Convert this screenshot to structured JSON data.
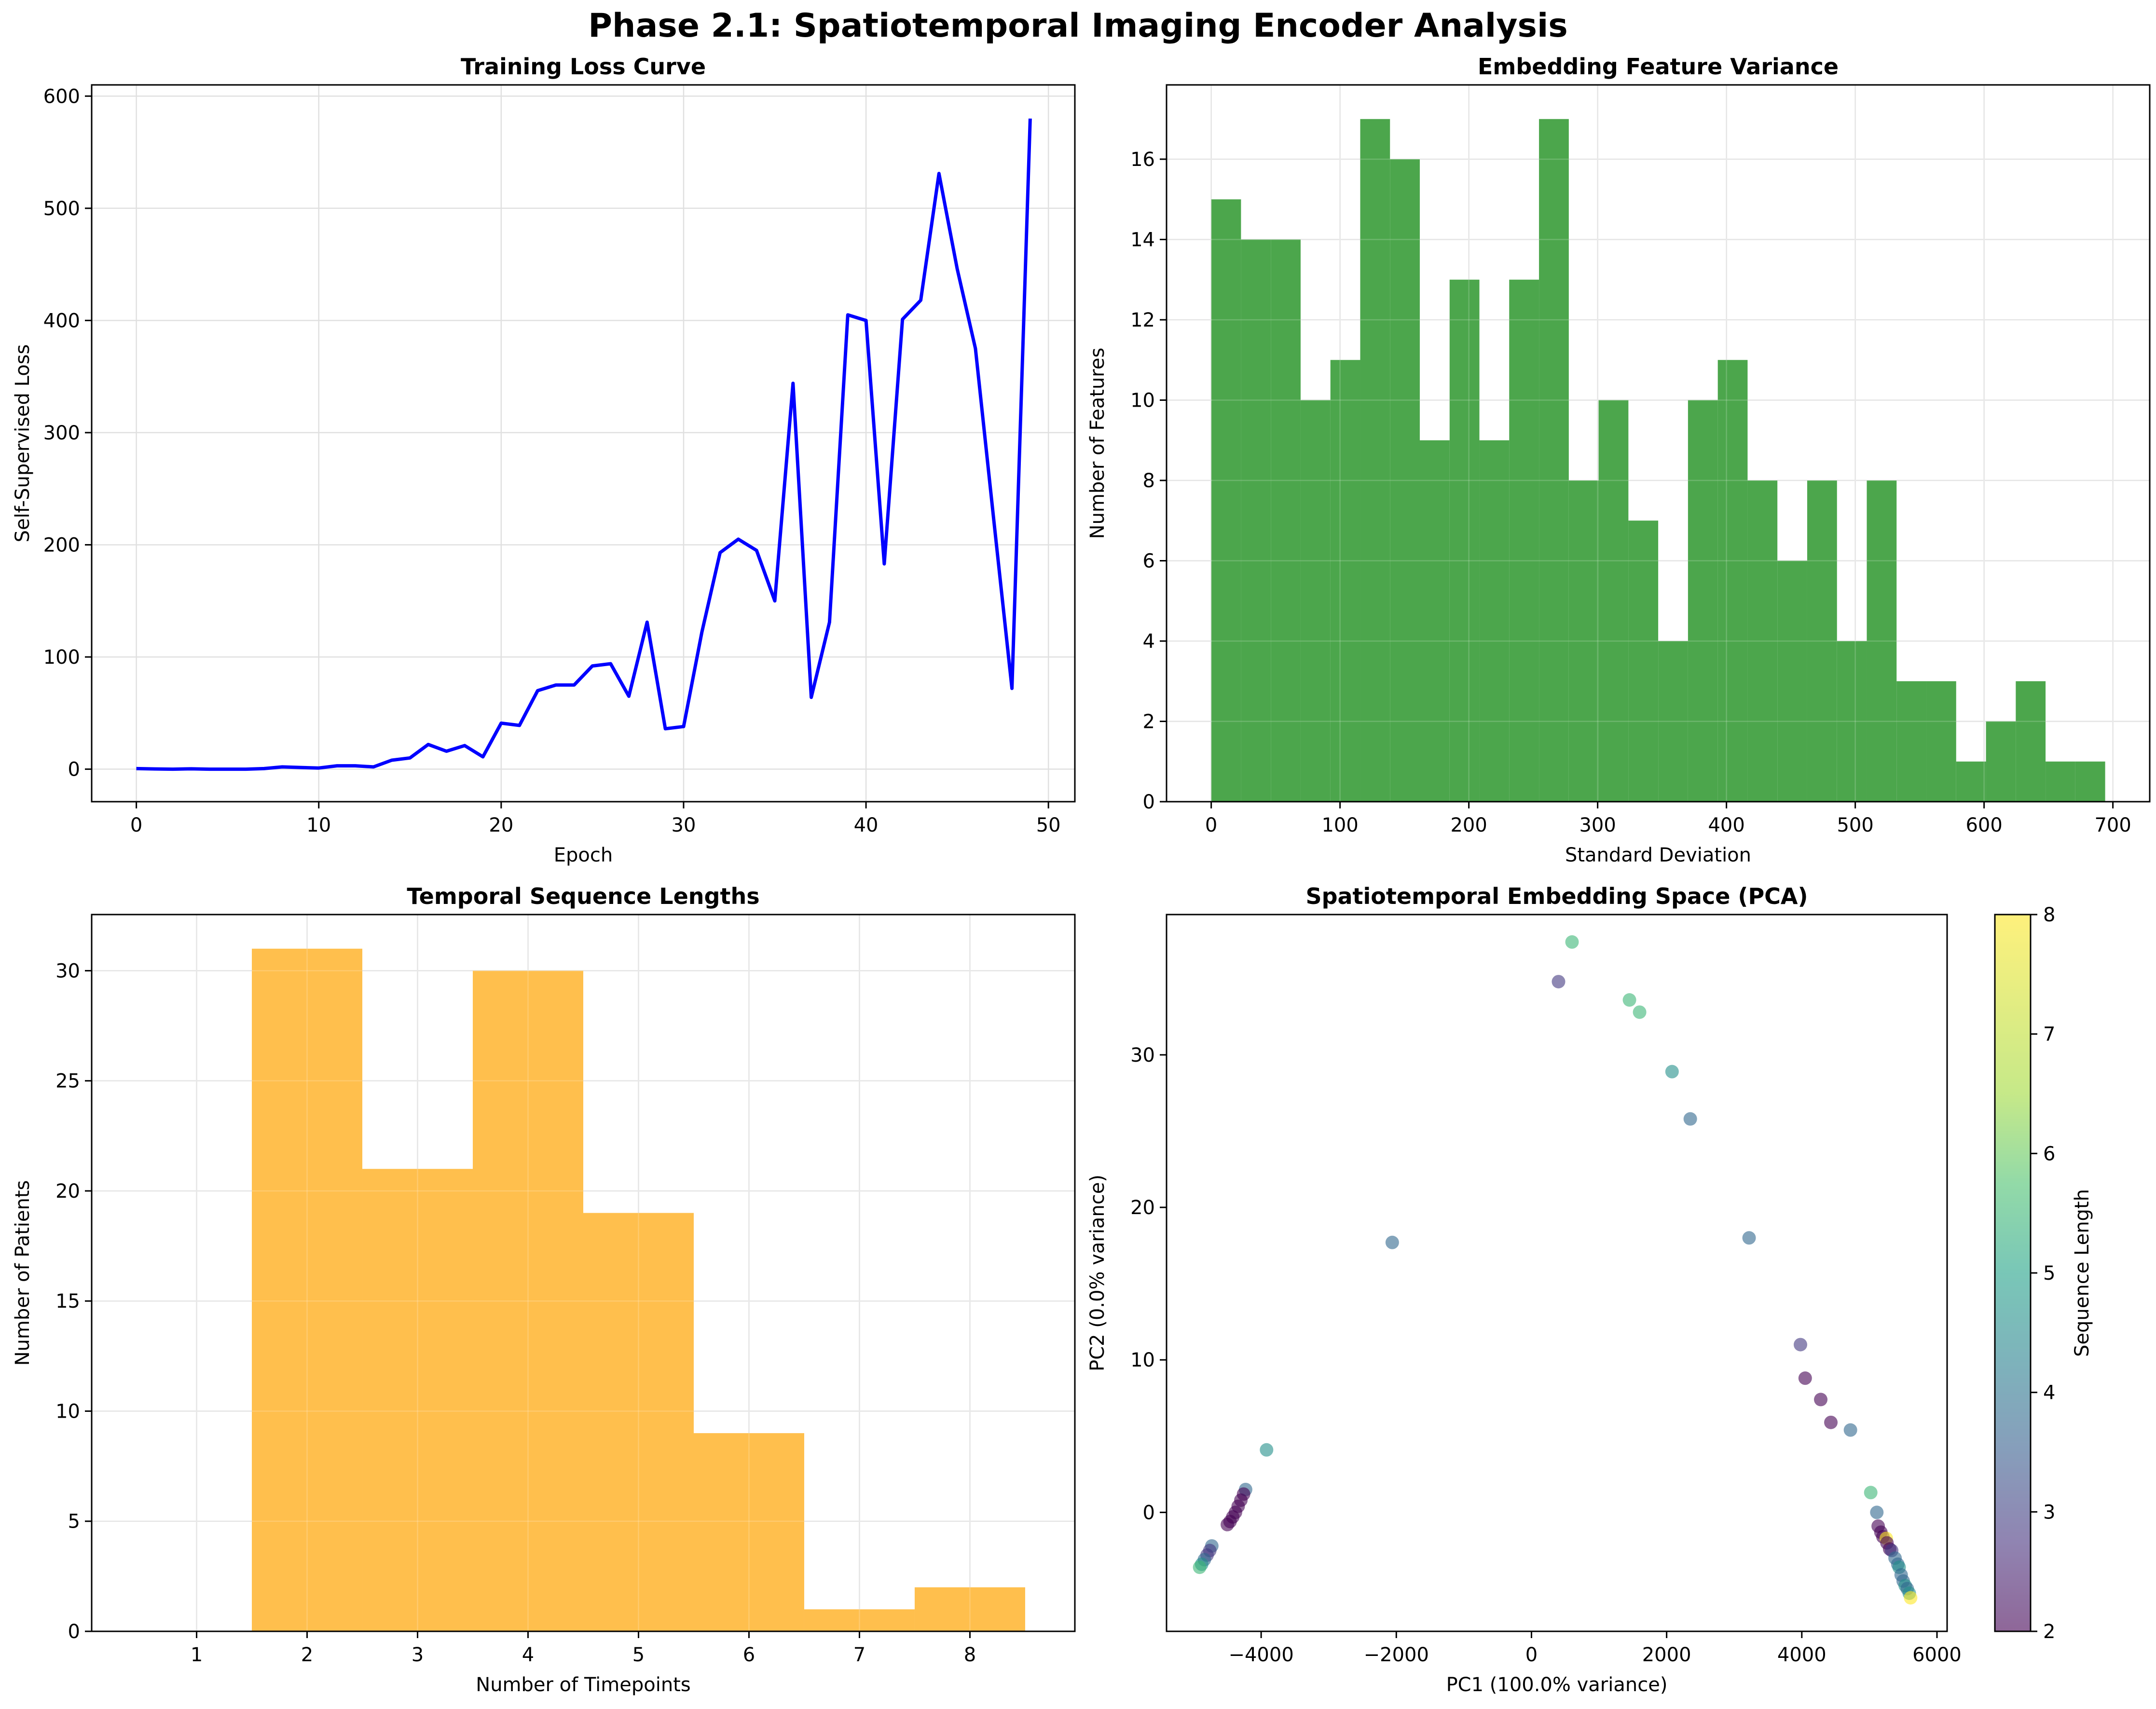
{
  "figure": {
    "title": "Phase 2.1: Spatiotemporal Imaging Encoder Analysis"
  },
  "chart_data": [
    {
      "id": "loss",
      "type": "line",
      "title": "Training Loss Curve",
      "xlabel": "Epoch",
      "ylabel": "Self-Supervised Loss",
      "xlim": [
        -2.45,
        51.45
      ],
      "ylim": [
        -29,
        610
      ],
      "xticks": [
        0,
        10,
        20,
        30,
        40,
        50
      ],
      "yticks": [
        0,
        100,
        200,
        300,
        400,
        500,
        600
      ],
      "grid": true,
      "color": "#0000ff",
      "x": [
        0,
        1,
        2,
        3,
        4,
        5,
        6,
        7,
        8,
        9,
        10,
        11,
        12,
        13,
        14,
        15,
        16,
        17,
        18,
        19,
        20,
        21,
        22,
        23,
        24,
        25,
        26,
        27,
        28,
        29,
        30,
        31,
        32,
        33,
        34,
        35,
        36,
        37,
        38,
        39,
        40,
        41,
        42,
        43,
        44,
        45,
        46,
        47,
        48,
        49
      ],
      "y": [
        0.5,
        0.2,
        0,
        0.3,
        0,
        0,
        0,
        0.5,
        2,
        1.5,
        1,
        3,
        3,
        2,
        8,
        10,
        22,
        16,
        21,
        11,
        41,
        39,
        70,
        75,
        75,
        92,
        94,
        65,
        131,
        36,
        38,
        122,
        193,
        205,
        195,
        150,
        344,
        64,
        131,
        405,
        400,
        183,
        401,
        418,
        531,
        446,
        375,
        223,
        72,
        580
      ]
    },
    {
      "id": "variance",
      "type": "bar",
      "title": "Embedding Feature Variance",
      "xlabel": "Standard Deviation",
      "ylabel": "Number of Features",
      "xlim": [
        -34.7,
        728.6
      ],
      "ylim": [
        0,
        17.85
      ],
      "xticks": [
        0,
        100,
        200,
        300,
        400,
        500,
        600,
        700
      ],
      "yticks": [
        0,
        2,
        4,
        6,
        8,
        10,
        12,
        14,
        16
      ],
      "grid": true,
      "color": "#4ca64c",
      "bin_edges": [
        0.0,
        23.13,
        46.27,
        69.4,
        92.53,
        115.67,
        138.8,
        161.93,
        185.07,
        208.2,
        231.33,
        254.47,
        277.6,
        300.73,
        323.87,
        347.0,
        370.13,
        393.27,
        416.4,
        439.53,
        462.67,
        485.8,
        508.93,
        532.07,
        555.2,
        578.33,
        601.47,
        624.6,
        647.73,
        670.87,
        694.0
      ],
      "counts": [
        15,
        14,
        14,
        10,
        11,
        17,
        16,
        9,
        13,
        9,
        13,
        17,
        8,
        10,
        7,
        4,
        10,
        11,
        8,
        6,
        8,
        4,
        8,
        3,
        3,
        1,
        2,
        3,
        1,
        1
      ]
    },
    {
      "id": "lengths",
      "type": "bar",
      "title": "Temporal Sequence Lengths",
      "xlabel": "Number of Timepoints",
      "ylabel": "Number of Patients",
      "xlim": [
        0.05,
        8.95
      ],
      "ylim": [
        0,
        32.55
      ],
      "xticks": [
        1,
        2,
        3,
        4,
        5,
        6,
        7,
        8
      ],
      "yticks": [
        0,
        5,
        10,
        15,
        20,
        25,
        30
      ],
      "grid": true,
      "color": "#ffbf4d",
      "bin_edges": [
        1.5,
        2.5,
        3.5,
        4.5,
        5.5,
        6.5,
        7.5,
        8.5
      ],
      "counts": [
        31,
        21,
        30,
        19,
        9,
        1,
        2
      ]
    },
    {
      "id": "pca",
      "type": "scatter",
      "title": "Spatiotemporal Embedding Space (PCA)",
      "xlabel": "PC1 (100.0% variance)",
      "ylabel": "PC2 (0.0% variance)",
      "xlim": [
        -5400,
        6150
      ],
      "ylim": [
        -7.8,
        39.2
      ],
      "xticks": [
        -4000,
        -2000,
        0,
        2000,
        4000,
        6000
      ],
      "yticks": [
        0,
        10,
        20,
        30
      ],
      "grid": false,
      "colorbar": {
        "label": "Sequence Length",
        "min": 2,
        "max": 8,
        "ticks": [
          2,
          3,
          4,
          5,
          6,
          7,
          8
        ]
      },
      "points": [
        {
          "x": 600,
          "y": 37.4,
          "len": 6
        },
        {
          "x": 400,
          "y": 34.8,
          "len": 3
        },
        {
          "x": 1450,
          "y": 33.6,
          "len": 6
        },
        {
          "x": 1600,
          "y": 32.8,
          "len": 6
        },
        {
          "x": 2080,
          "y": 28.9,
          "len": 5
        },
        {
          "x": 2350,
          "y": 25.8,
          "len": 4
        },
        {
          "x": -2060,
          "y": 17.7,
          "len": 4
        },
        {
          "x": 3220,
          "y": 18.0,
          "len": 4
        },
        {
          "x": 3980,
          "y": 11.0,
          "len": 3
        },
        {
          "x": 4050,
          "y": 8.8,
          "len": 2
        },
        {
          "x": 4280,
          "y": 7.4,
          "len": 2
        },
        {
          "x": 4430,
          "y": 5.9,
          "len": 2
        },
        {
          "x": 4720,
          "y": 5.4,
          "len": 4
        },
        {
          "x": -3920,
          "y": 4.1,
          "len": 5
        },
        {
          "x": -4230,
          "y": 1.5,
          "len": 4
        },
        {
          "x": -4260,
          "y": 1.2,
          "len": 2
        },
        {
          "x": -4300,
          "y": 0.8,
          "len": 2
        },
        {
          "x": -4340,
          "y": 0.4,
          "len": 2
        },
        {
          "x": -4380,
          "y": 0.0,
          "len": 2
        },
        {
          "x": -4420,
          "y": -0.3,
          "len": 2
        },
        {
          "x": -4460,
          "y": -0.6,
          "len": 2
        },
        {
          "x": -4500,
          "y": -0.8,
          "len": 2
        },
        {
          "x": -4730,
          "y": -2.2,
          "len": 4
        },
        {
          "x": -4760,
          "y": -2.5,
          "len": 3
        },
        {
          "x": -4800,
          "y": -2.8,
          "len": 3
        },
        {
          "x": -4840,
          "y": -3.1,
          "len": 4
        },
        {
          "x": -4880,
          "y": -3.4,
          "len": 5
        },
        {
          "x": -4910,
          "y": -3.6,
          "len": 6
        },
        {
          "x": 5020,
          "y": 1.3,
          "len": 6
        },
        {
          "x": 5110,
          "y": 0.0,
          "len": 4
        },
        {
          "x": 5130,
          "y": -0.9,
          "len": 2
        },
        {
          "x": 5170,
          "y": -1.3,
          "len": 2
        },
        {
          "x": 5200,
          "y": -1.6,
          "len": 2
        },
        {
          "x": 5250,
          "y": -1.7,
          "len": 8
        },
        {
          "x": 5260,
          "y": -2.0,
          "len": 2
        },
        {
          "x": 5300,
          "y": -2.4,
          "len": 2
        },
        {
          "x": 5330,
          "y": -2.5,
          "len": 3
        },
        {
          "x": 5380,
          "y": -3.0,
          "len": 4
        },
        {
          "x": 5420,
          "y": -3.4,
          "len": 4
        },
        {
          "x": 5440,
          "y": -3.6,
          "len": 5
        },
        {
          "x": 5470,
          "y": -4.1,
          "len": 4
        },
        {
          "x": 5500,
          "y": -4.5,
          "len": 4
        },
        {
          "x": 5530,
          "y": -4.8,
          "len": 5
        },
        {
          "x": 5560,
          "y": -5.0,
          "len": 4
        },
        {
          "x": 5590,
          "y": -5.3,
          "len": 5
        },
        {
          "x": 5610,
          "y": -5.6,
          "len": 8
        }
      ]
    }
  ]
}
